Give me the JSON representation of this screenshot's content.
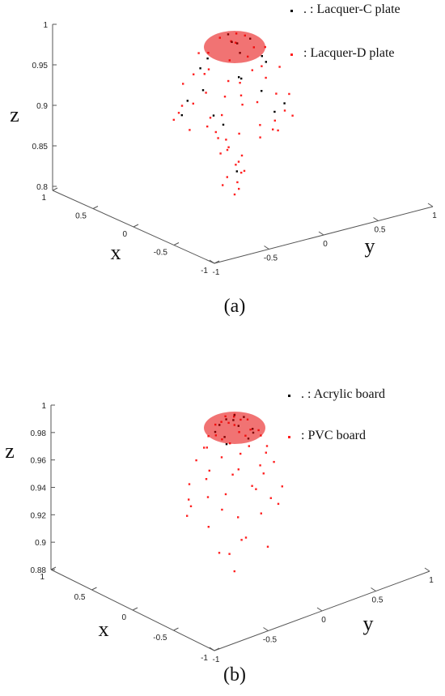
{
  "chart_data": [
    {
      "type": "scatter",
      "caption": "(a)",
      "xlabel": "x",
      "ylabel": "y",
      "zlabel": "z",
      "xlim": [
        -1,
        1
      ],
      "ylim": [
        -1,
        1
      ],
      "zlim": [
        0.8,
        1
      ],
      "x_ticks": [
        "1",
        "0.5",
        "0",
        "-0.5",
        "-1"
      ],
      "y_ticks": [
        "-1",
        "-0.5",
        "0",
        "0.5",
        "1"
      ],
      "z_ticks": [
        "0.8",
        "0.85",
        "0.9",
        "0.95",
        "1"
      ],
      "grid": false,
      "legend_position": "top-right",
      "series": [
        {
          "name": "Lacquer-C plate",
          "legend_text": ". : Lacquer-C plate",
          "color": "#000000",
          "points": [
            [
              0.06,
              -0.04,
              0.998
            ],
            [
              -0.1,
              0.12,
              0.992
            ],
            [
              0.15,
              0.05,
              0.99
            ],
            [
              -0.2,
              -0.08,
              0.984
            ],
            [
              0.22,
              0.18,
              0.978
            ],
            [
              -0.05,
              0.28,
              0.972
            ],
            [
              0.3,
              -0.14,
              0.97
            ],
            [
              -0.28,
              0.2,
              0.962
            ],
            [
              0.12,
              -0.32,
              0.955
            ],
            [
              0.34,
              0.26,
              0.948
            ],
            [
              -0.38,
              -0.16,
              0.94
            ],
            [
              0.18,
              0.4,
              0.932
            ],
            [
              -0.12,
              -0.42,
              0.925
            ],
            [
              0.42,
              -0.3,
              0.918
            ],
            [
              -0.44,
              0.32,
              0.91
            ],
            [
              0.02,
              0.46,
              0.905
            ],
            [
              0.28,
              -0.44,
              0.898
            ],
            [
              -0.3,
              -0.4,
              0.892
            ],
            [
              0.05,
              -0.1,
              0.886
            ],
            [
              0.1,
              0.08,
              0.83
            ]
          ]
        },
        {
          "name": "Lacquer-D plate",
          "legend_text": ": Lacquer-D plate",
          "color": "#ff2020",
          "points": [
            [
              0.02,
              0.03,
              0.999
            ],
            [
              -0.14,
              0.04,
              0.995
            ],
            [
              0.12,
              -0.1,
              0.994
            ],
            [
              0.2,
              0.12,
              0.99
            ],
            [
              -0.22,
              -0.16,
              0.986
            ],
            [
              0.08,
              0.26,
              0.984
            ],
            [
              -0.3,
              0.18,
              0.98
            ],
            [
              0.3,
              -0.24,
              0.976
            ],
            [
              -0.08,
              -0.34,
              0.972
            ],
            [
              0.36,
              0.14,
              0.97
            ],
            [
              -0.38,
              -0.06,
              0.966
            ],
            [
              0.14,
              0.38,
              0.962
            ],
            [
              0.26,
              0.34,
              0.958
            ],
            [
              -0.34,
              0.32,
              0.956
            ],
            [
              0.4,
              -0.12,
              0.952
            ],
            [
              -0.2,
              -0.4,
              0.95
            ],
            [
              0.04,
              -0.44,
              0.946
            ],
            [
              0.44,
              0.3,
              0.944
            ],
            [
              -0.46,
              0.1,
              0.94
            ],
            [
              0.22,
              -0.46,
              0.936
            ],
            [
              -0.42,
              -0.3,
              0.934
            ],
            [
              0.48,
              -0.06,
              0.93
            ],
            [
              0.06,
              0.5,
              0.928
            ],
            [
              -0.28,
              0.46,
              0.924
            ],
            [
              0.34,
              0.44,
              0.92
            ],
            [
              -0.5,
              -0.2,
              0.916
            ],
            [
              0.46,
              -0.34,
              0.912
            ],
            [
              -0.1,
              -0.52,
              0.908
            ],
            [
              0.52,
              0.14,
              0.904
            ],
            [
              -0.52,
              0.28,
              0.9
            ],
            [
              0.16,
              0.54,
              0.896
            ],
            [
              0.3,
              -0.52,
              0.892
            ],
            [
              -0.38,
              -0.48,
              0.888
            ],
            [
              0.56,
              -0.2,
              0.884
            ],
            [
              -0.56,
              -0.02,
              0.88
            ],
            [
              0.02,
              -0.2,
              0.876
            ],
            [
              0.12,
              -0.12,
              0.87
            ],
            [
              -0.08,
              -0.14,
              0.866
            ],
            [
              0.16,
              0.02,
              0.86
            ],
            [
              0.04,
              -0.06,
              0.855
            ],
            [
              -0.04,
              0.06,
              0.848
            ],
            [
              0.1,
              0.1,
              0.842
            ],
            [
              -0.06,
              -0.02,
              0.836
            ],
            [
              0.02,
              0.12,
              0.83
            ],
            [
              0.08,
              -0.04,
              0.822
            ],
            [
              -0.02,
              0.02,
              0.815
            ],
            [
              0.06,
              0.08,
              0.808
            ],
            [
              0.0,
              0.0,
              0.8
            ],
            [
              0.1,
              -0.08,
              0.812
            ],
            [
              -0.1,
              0.02,
              0.826
            ],
            [
              0.18,
              -0.06,
              0.852
            ],
            [
              0.2,
              0.16,
              0.878
            ],
            [
              -0.16,
              0.2,
              0.87
            ],
            [
              0.6,
              0.02,
              0.89
            ],
            [
              -0.6,
              0.16,
              0.874
            ],
            [
              0.24,
              0.56,
              0.886
            ],
            [
              0.38,
              -0.42,
              0.902
            ],
            [
              -0.24,
              0.52,
              0.898
            ],
            [
              0.5,
              0.36,
              0.918
            ],
            [
              -0.46,
              -0.36,
              0.914
            ]
          ]
        }
      ]
    },
    {
      "type": "scatter",
      "caption": "(b)",
      "xlabel": "x",
      "ylabel": "y",
      "zlabel": "z",
      "xlim": [
        -1,
        1
      ],
      "ylim": [
        -1,
        1
      ],
      "zlim": [
        0.88,
        1
      ],
      "x_ticks": [
        "1",
        "0.5",
        "0",
        "-0.5",
        "-1"
      ],
      "y_ticks": [
        "-1",
        "-0.5",
        "0",
        "0.5",
        "1"
      ],
      "z_ticks": [
        "0.88",
        "0.9",
        "0.92",
        "0.94",
        "0.96",
        "0.98",
        "1"
      ],
      "grid": false,
      "legend_position": "top-right",
      "series": [
        {
          "name": "Acrylic board",
          "legend_text": ". : Acrylic board",
          "color": "#000000",
          "points": [
            [
              0.04,
              0.02,
              0.999
            ],
            [
              -0.08,
              0.06,
              0.997
            ],
            [
              0.1,
              -0.04,
              0.996
            ],
            [
              -0.12,
              -0.08,
              0.994
            ],
            [
              0.14,
              0.12,
              0.992
            ],
            [
              0.02,
              -0.16,
              0.991
            ],
            [
              -0.04,
              0.18,
              0.989
            ],
            [
              0.18,
              -0.12,
              0.987
            ],
            [
              -0.2,
              0.1,
              0.985
            ],
            [
              0.12,
              0.22,
              0.983
            ],
            [
              -0.16,
              -0.2,
              0.981
            ],
            [
              0.24,
              0.04,
              0.979
            ]
          ]
        },
        {
          "name": "PVC board",
          "legend_text": ": PVC board",
          "color": "#ff2020",
          "points": [
            [
              0.0,
              0.0,
              0.999
            ],
            [
              0.08,
              -0.06,
              0.998
            ],
            [
              -0.06,
              -0.04,
              0.997
            ],
            [
              0.06,
              0.1,
              0.996
            ],
            [
              -0.12,
              0.08,
              0.995
            ],
            [
              0.16,
              0.02,
              0.994
            ],
            [
              -0.02,
              -0.16,
              0.993
            ],
            [
              0.14,
              -0.14,
              0.992
            ],
            [
              -0.18,
              -0.1,
              0.99
            ],
            [
              0.04,
              0.2,
              0.989
            ],
            [
              0.2,
              0.16,
              0.988
            ],
            [
              -0.2,
              0.16,
              0.987
            ],
            [
              0.24,
              -0.08,
              0.985
            ],
            [
              -0.1,
              0.24,
              0.984
            ],
            [
              0.1,
              -0.24,
              0.983
            ],
            [
              -0.26,
              -0.02,
              0.982
            ],
            [
              0.28,
              0.1,
              0.98
            ],
            [
              -0.18,
              -0.24,
              0.979
            ],
            [
              0.18,
              0.26,
              0.978
            ],
            [
              0.3,
              -0.18,
              0.976
            ],
            [
              -0.3,
              0.2,
              0.975
            ],
            [
              0.02,
              -0.3,
              0.974
            ],
            [
              -0.06,
              0.32,
              0.972
            ],
            [
              0.34,
              0.04,
              0.97
            ],
            [
              -0.34,
              -0.12,
              0.968
            ],
            [
              0.24,
              -0.3,
              0.966
            ],
            [
              -0.26,
              0.3,
              0.964
            ],
            [
              0.36,
              0.24,
              0.962
            ],
            [
              -0.38,
              0.08,
              0.96
            ],
            [
              0.1,
              0.38,
              0.958
            ],
            [
              -0.14,
              -0.36,
              0.956
            ],
            [
              0.4,
              -0.1,
              0.954
            ],
            [
              -0.4,
              -0.24,
              0.952
            ],
            [
              0.3,
              0.36,
              0.95
            ],
            [
              0.2,
              -0.4,
              0.948
            ],
            [
              -0.32,
              0.36,
              0.946
            ],
            [
              0.44,
              0.14,
              0.944
            ],
            [
              -0.44,
              0.0,
              0.942
            ],
            [
              0.06,
              0.44,
              0.94
            ],
            [
              0.36,
              -0.32,
              0.938
            ],
            [
              -0.22,
              -0.42,
              0.936
            ],
            [
              0.46,
              -0.24,
              0.934
            ],
            [
              -0.46,
              0.24,
              0.932
            ],
            [
              0.26,
              0.44,
              0.93
            ],
            [
              0.48,
              0.3,
              0.928
            ],
            [
              -0.4,
              -0.36,
              0.926
            ],
            [
              0.1,
              -0.48,
              0.924
            ],
            [
              0.5,
              -0.02,
              0.92
            ],
            [
              -0.6,
              -0.2,
              0.905
            ],
            [
              -0.62,
              -0.26,
              0.903
            ],
            [
              0.62,
              0.28,
              0.902
            ],
            [
              -0.5,
              0.1,
              0.9
            ],
            [
              0.06,
              -0.14,
              0.898
            ],
            [
              0.04,
              0.02,
              0.885
            ]
          ]
        }
      ]
    }
  ]
}
